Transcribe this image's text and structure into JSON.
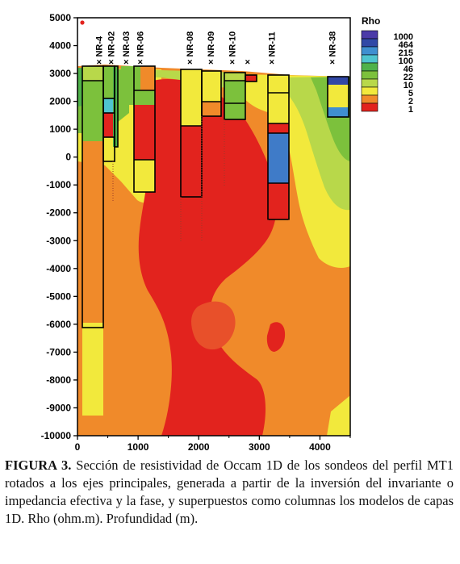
{
  "chart_data": {
    "type": "heatmap",
    "title": "",
    "xlabel": "",
    "ylabel": "",
    "xlim": [
      0,
      4500
    ],
    "ylim": [
      -10000,
      5000
    ],
    "x_ticks": [
      "0",
      "1000",
      "2000",
      "3000",
      "4000"
    ],
    "x_tick_values": [
      0,
      1000,
      2000,
      3000,
      4000
    ],
    "y_ticks": [
      "5000",
      "4000",
      "3000",
      "2000",
      "1000",
      "0",
      "-1000",
      "-2000",
      "-3000",
      "-4000",
      "-5000",
      "-6000",
      "-7000",
      "-8000",
      "-9000",
      "-10000"
    ],
    "y_tick_values": [
      5000,
      4000,
      3000,
      2000,
      1000,
      0,
      -1000,
      -2000,
      -3000,
      -4000,
      -5000,
      -6000,
      -7000,
      -8000,
      -9000,
      -10000
    ],
    "legend": {
      "title": "Rho",
      "placement": "top-right",
      "entries": [
        {
          "label": "1000",
          "color": "#4b3aa8"
        },
        {
          "label": "464",
          "color": "#3148a6"
        },
        {
          "label": "215",
          "color": "#3f8fd0"
        },
        {
          "label": "100",
          "color": "#4fc4cf"
        },
        {
          "label": "46",
          "color": "#4fb24a"
        },
        {
          "label": "22",
          "color": "#7cc13c"
        },
        {
          "label": "10",
          "color": "#b8d84a"
        },
        {
          "label": "5",
          "color": "#f2e93c"
        },
        {
          "label": "2",
          "color": "#f08a2a"
        },
        {
          "label": "1",
          "color": "#e2231e"
        }
      ]
    },
    "stations": [
      {
        "label": "NR-4",
        "x": 350
      },
      {
        "label": "NR-02",
        "x": 550
      },
      {
        "label": "NR-03",
        "x": 800
      },
      {
        "label": "NR-06",
        "x": 1030
      },
      {
        "label": "NR-08",
        "x": 1850
      },
      {
        "label": "NR-09",
        "x": 2200
      },
      {
        "label": "NR-10",
        "x": 2550
      },
      {
        "label": "",
        "x": 2800
      },
      {
        "label": "NR-11",
        "x": 3200
      },
      {
        "label": "NR-38",
        "x": 4200
      }
    ],
    "grid": false
  },
  "caption": {
    "label": "FIGURA 3.",
    "text": " Sección de resistividad de Occam  1D de los sondeos del perfil MT1 rotados a los ejes principales, generada a partir de la inversión del invariante o impedancia efectiva y la fase, y superpuestos como columnas los modelos de capas 1D. Rho (ohm.m). Profundidad (m)."
  }
}
